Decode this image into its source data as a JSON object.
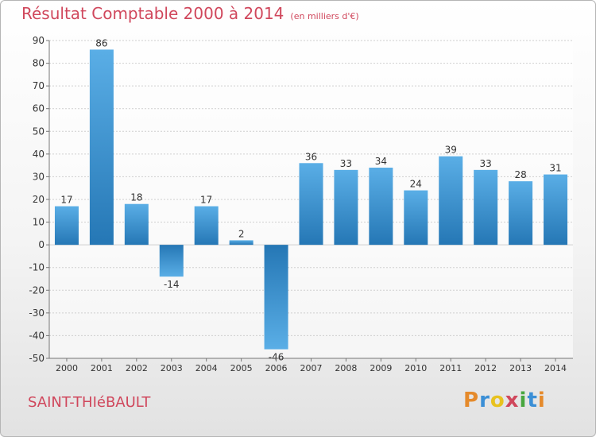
{
  "chart_data": {
    "type": "bar",
    "title": "Résultat Comptable 2000 à 2014",
    "subtitle": "(en milliers d'€)",
    "categories": [
      "2000",
      "2001",
      "2002",
      "2003",
      "2004",
      "2005",
      "2006",
      "2007",
      "2008",
      "2009",
      "2010",
      "2011",
      "2012",
      "2013",
      "2014"
    ],
    "values": [
      17,
      86,
      18,
      -14,
      17,
      2,
      -46,
      36,
      33,
      34,
      24,
      39,
      33,
      28,
      31
    ],
    "ylim": [
      -50,
      90
    ],
    "yticks": [
      90,
      80,
      70,
      60,
      50,
      40,
      30,
      20,
      10,
      0,
      -10,
      -20,
      -30,
      -40,
      -50
    ],
    "xlabel": "",
    "ylabel": "",
    "grid": true,
    "legend": "none",
    "bar_color_light": "#5aaee6",
    "bar_color_dark": "#2577b5"
  },
  "footer": {
    "commune": "SAINT-THIéBAULT",
    "logo_letters": [
      {
        "ch": "P",
        "color": "#e58a2b"
      },
      {
        "ch": "r",
        "color": "#3b8fd6"
      },
      {
        "ch": "o",
        "color": "#e8c21f"
      },
      {
        "ch": "x",
        "color": "#d0475c"
      },
      {
        "ch": "i",
        "color": "#48a63f"
      },
      {
        "ch": "t",
        "color": "#3b8fd6"
      },
      {
        "ch": "i",
        "color": "#e58a2b"
      }
    ]
  }
}
